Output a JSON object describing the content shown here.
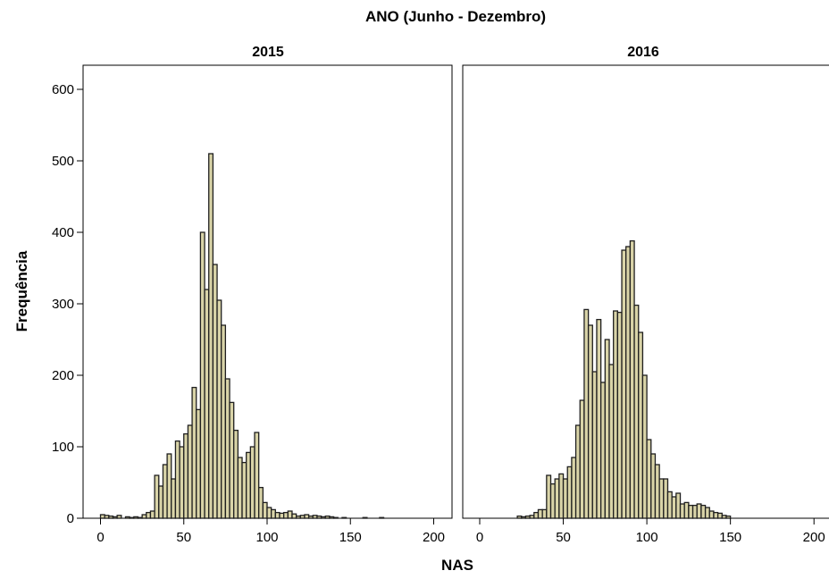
{
  "chart_data": {
    "type": "bar",
    "title": "ANO (Junho - Dezembro)",
    "xlabel": "NAS",
    "ylabel": "Frequência",
    "xlim": [
      -10,
      210
    ],
    "ylim": [
      0,
      630
    ],
    "x_ticks": [
      0,
      50,
      100,
      150,
      200
    ],
    "y_ticks": [
      0,
      100,
      200,
      300,
      400,
      500,
      600
    ],
    "bin_width": 2.5,
    "grid": false,
    "bar_color": "#d9d4a8",
    "outline_color": "#1f1f1f",
    "panels": [
      {
        "label": "2015",
        "bins": [
          [
            0,
            5
          ],
          [
            2.5,
            4
          ],
          [
            5,
            3
          ],
          [
            7.5,
            2
          ],
          [
            10,
            4
          ],
          [
            15,
            2
          ],
          [
            17.5,
            1
          ],
          [
            20,
            2
          ],
          [
            22.5,
            1
          ],
          [
            25,
            5
          ],
          [
            27.5,
            8
          ],
          [
            30,
            10
          ],
          [
            32.5,
            60
          ],
          [
            35,
            45
          ],
          [
            37.5,
            75
          ],
          [
            40,
            90
          ],
          [
            42.5,
            55
          ],
          [
            45,
            108
          ],
          [
            47.5,
            100
          ],
          [
            50,
            118
          ],
          [
            52.5,
            130
          ],
          [
            55,
            183
          ],
          [
            57.5,
            152
          ],
          [
            60,
            400
          ],
          [
            62.5,
            320
          ],
          [
            65,
            510
          ],
          [
            67.5,
            355
          ],
          [
            70,
            305
          ],
          [
            72.5,
            270
          ],
          [
            75,
            195
          ],
          [
            77.5,
            162
          ],
          [
            80,
            123
          ],
          [
            82.5,
            85
          ],
          [
            85,
            78
          ],
          [
            87.5,
            92
          ],
          [
            90,
            100
          ],
          [
            92.5,
            120
          ],
          [
            95,
            43
          ],
          [
            97.5,
            22
          ],
          [
            100,
            15
          ],
          [
            102.5,
            12
          ],
          [
            105,
            8
          ],
          [
            107.5,
            7
          ],
          [
            110,
            8
          ],
          [
            112.5,
            10
          ],
          [
            115,
            6
          ],
          [
            117.5,
            3
          ],
          [
            120,
            4
          ],
          [
            122.5,
            5
          ],
          [
            125,
            3
          ],
          [
            127.5,
            4
          ],
          [
            130,
            3
          ],
          [
            132.5,
            2
          ],
          [
            135,
            3
          ],
          [
            137.5,
            2
          ],
          [
            140,
            1
          ],
          [
            145,
            1
          ],
          [
            157.5,
            1
          ],
          [
            167.5,
            1
          ]
        ]
      },
      {
        "label": "2016",
        "bins": [
          [
            22.5,
            3
          ],
          [
            25,
            2
          ],
          [
            27.5,
            3
          ],
          [
            30,
            4
          ],
          [
            32.5,
            8
          ],
          [
            35,
            12
          ],
          [
            37.5,
            12
          ],
          [
            40,
            60
          ],
          [
            42.5,
            48
          ],
          [
            45,
            55
          ],
          [
            47.5,
            62
          ],
          [
            50,
            55
          ],
          [
            52.5,
            72
          ],
          [
            55,
            85
          ],
          [
            57.5,
            130
          ],
          [
            60,
            165
          ],
          [
            62.5,
            292
          ],
          [
            65,
            270
          ],
          [
            67.5,
            205
          ],
          [
            70,
            278
          ],
          [
            72.5,
            190
          ],
          [
            75,
            250
          ],
          [
            77.5,
            215
          ],
          [
            80,
            290
          ],
          [
            82.5,
            288
          ],
          [
            85,
            375
          ],
          [
            87.5,
            380
          ],
          [
            90,
            388
          ],
          [
            92.5,
            298
          ],
          [
            95,
            260
          ],
          [
            97.5,
            200
          ],
          [
            100,
            110
          ],
          [
            102.5,
            90
          ],
          [
            105,
            75
          ],
          [
            107.5,
            55
          ],
          [
            110,
            55
          ],
          [
            112.5,
            37
          ],
          [
            115,
            30
          ],
          [
            117.5,
            35
          ],
          [
            120,
            20
          ],
          [
            122.5,
            22
          ],
          [
            125,
            18
          ],
          [
            127.5,
            18
          ],
          [
            130,
            20
          ],
          [
            132.5,
            18
          ],
          [
            135,
            15
          ],
          [
            137.5,
            10
          ],
          [
            140,
            8
          ],
          [
            142.5,
            7
          ],
          [
            145,
            4
          ],
          [
            147.5,
            3
          ]
        ]
      }
    ]
  }
}
